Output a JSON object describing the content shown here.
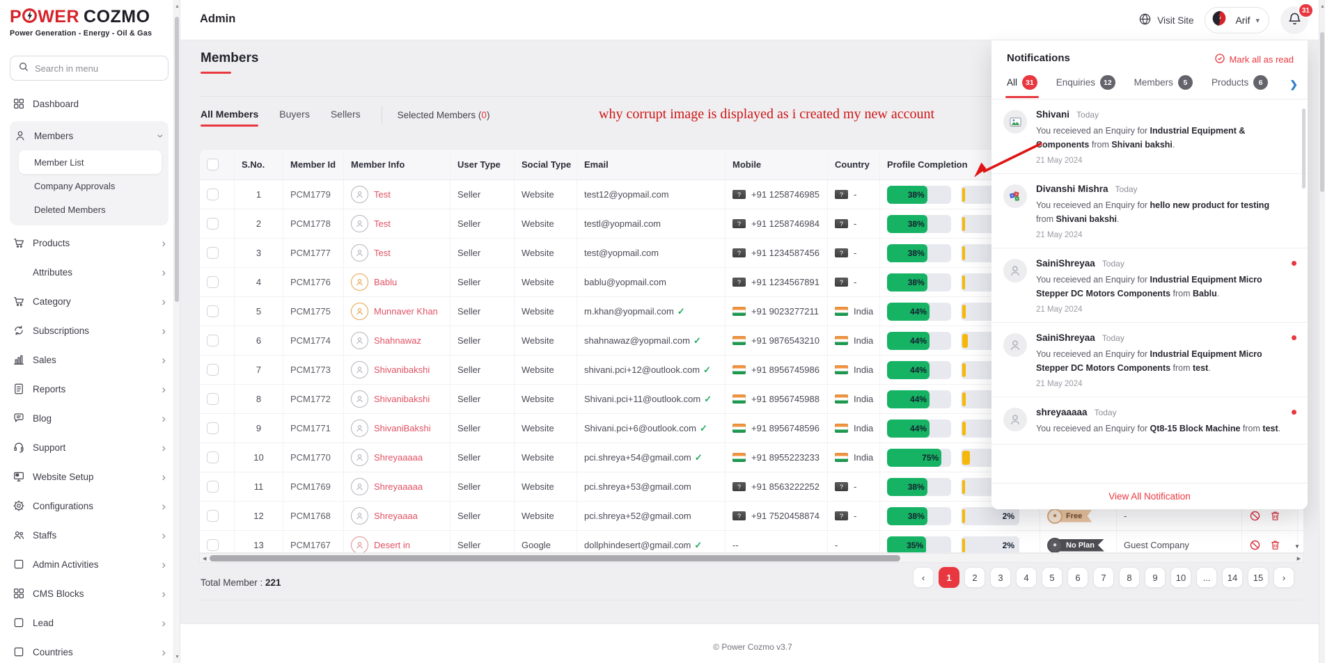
{
  "colors": {
    "accent": "#e8373f",
    "green": "#16b364",
    "yellow": "#f5b70a",
    "name_link": "#e05263",
    "brand_red": "#d6232a"
  },
  "brand": {
    "logo_part1": "P",
    "logo_part2": "WER",
    "logo_part3": "COZMO",
    "tagline": "Power Generation - Energy - Oil & Gas"
  },
  "header": {
    "title": "Admin",
    "visit_site": "Visit Site",
    "user_name": "Arif",
    "notification_count": "31"
  },
  "sidebar": {
    "search_placeholder": "Search in menu",
    "items": [
      {
        "label": "Dashboard",
        "icon": "dashboard-grid",
        "chevron": false
      },
      {
        "label": "Members",
        "icon": "person",
        "expanded": true,
        "children": [
          {
            "label": "Member List",
            "active": true
          },
          {
            "label": "Company Approvals",
            "active": false
          },
          {
            "label": "Deleted Members",
            "active": false
          }
        ]
      },
      {
        "label": "Products",
        "icon": "cart",
        "chevron": true
      },
      {
        "label": "Attributes",
        "icon": "",
        "chevron": true
      },
      {
        "label": "Category",
        "icon": "cart",
        "chevron": true
      },
      {
        "label": "Subscriptions",
        "icon": "refresh",
        "chevron": true
      },
      {
        "label": "Sales",
        "icon": "bar-chart",
        "chevron": true
      },
      {
        "label": "Reports",
        "icon": "document",
        "chevron": true
      },
      {
        "label": "Blog",
        "icon": "chat",
        "chevron": true
      },
      {
        "label": "Support",
        "icon": "headset",
        "chevron": true
      },
      {
        "label": "Website Setup",
        "icon": "monitor",
        "chevron": true
      },
      {
        "label": "Configurations",
        "icon": "gear",
        "chevron": true
      },
      {
        "label": "Staffs",
        "icon": "people",
        "chevron": true
      },
      {
        "label": "Admin Activities",
        "icon": "box",
        "chevron": true
      },
      {
        "label": "CMS Blocks",
        "icon": "dashboard-grid",
        "chevron": true
      },
      {
        "label": "Lead",
        "icon": "box",
        "chevron": true
      },
      {
        "label": "Countries",
        "icon": "box",
        "chevron": true
      }
    ]
  },
  "page": {
    "title": "Members",
    "tabs": [
      {
        "label": "All Members",
        "active": true
      },
      {
        "label": "Buyers",
        "active": false
      },
      {
        "label": "Sellers",
        "active": false
      }
    ],
    "selected_label": "Selected Members",
    "selected_count": "0"
  },
  "annotation": {
    "text": "why corrupt image is displayed as i created my new account"
  },
  "table": {
    "columns": [
      "",
      "S.No.",
      "Member Id",
      "Member Info",
      "User Type",
      "Social Type",
      "Email",
      "Mobile",
      "Country",
      "Profile Completion",
      "",
      "",
      ""
    ],
    "rows": [
      {
        "sno": "1",
        "member_id": "PCM1779",
        "name": "Test",
        "avatar_tint": "#b4b4bc",
        "user_type": "Seller",
        "social_type": "Website",
        "email": "test12@yopmail.com",
        "email_verified": false,
        "mobile_flag": "unknown",
        "mobile": "+91 1258746985",
        "country_flag": "unknown",
        "country": "-",
        "profile_green": 38,
        "profile_yellow": 2,
        "plan": "",
        "company": ""
      },
      {
        "sno": "2",
        "member_id": "PCM1778",
        "name": "Test",
        "avatar_tint": "#b4b4bc",
        "user_type": "Seller",
        "social_type": "Website",
        "email": "testl@yopmail.com",
        "email_verified": false,
        "mobile_flag": "unknown",
        "mobile": "+91 1258746984",
        "country_flag": "unknown",
        "country": "-",
        "profile_green": 38,
        "profile_yellow": 2,
        "plan": "",
        "company": ""
      },
      {
        "sno": "3",
        "member_id": "PCM1777",
        "name": "Test",
        "avatar_tint": "#b4b4bc",
        "user_type": "Seller",
        "social_type": "Website",
        "email": "test@yopmail.com",
        "email_verified": false,
        "mobile_flag": "unknown",
        "mobile": "+91 1234587456",
        "country_flag": "unknown",
        "country": "-",
        "profile_green": 38,
        "profile_yellow": 2,
        "plan": "",
        "company": ""
      },
      {
        "sno": "4",
        "member_id": "PCM1776",
        "name": "Bablu",
        "avatar_tint": "#e3a24b",
        "user_type": "Seller",
        "social_type": "Website",
        "email": "bablu@yopmail.com",
        "email_verified": false,
        "mobile_flag": "unknown",
        "mobile": "+91 1234567891",
        "country_flag": "unknown",
        "country": "-",
        "profile_green": 38,
        "profile_yellow": 2,
        "plan": "",
        "company": ""
      },
      {
        "sno": "5",
        "member_id": "PCM1775",
        "name": "Munnaver Khan",
        "avatar_tint": "#e3a24b",
        "user_type": "Seller",
        "social_type": "Website",
        "email": "m.khan@yopmail.com",
        "email_verified": true,
        "mobile_flag": "india",
        "mobile": "+91 9023277211",
        "country_flag": "india",
        "country": "India",
        "profile_green": 44,
        "profile_yellow": 3,
        "plan": "",
        "company": ""
      },
      {
        "sno": "6",
        "member_id": "PCM1774",
        "name": "Shahnawaz",
        "avatar_tint": "#b4b4bc",
        "user_type": "Seller",
        "social_type": "Website",
        "email": "shahnawaz@yopmail.com",
        "email_verified": true,
        "mobile_flag": "india",
        "mobile": "+91 9876543210",
        "country_flag": "india",
        "country": "India",
        "profile_green": 44,
        "profile_yellow": 9,
        "plan": "",
        "company": ""
      },
      {
        "sno": "7",
        "member_id": "PCM1773",
        "name": "Shivanibakshi",
        "avatar_tint": "#b4b4bc",
        "user_type": "Seller",
        "social_type": "Website",
        "email": "shivani.pci+12@outlook.com",
        "email_verified": true,
        "mobile_flag": "india",
        "mobile": "+91 8956745986",
        "country_flag": "india",
        "country": "India",
        "profile_green": 44,
        "profile_yellow": 3,
        "plan": "",
        "company": ""
      },
      {
        "sno": "8",
        "member_id": "PCM1772",
        "name": "Shivanibakshi",
        "avatar_tint": "#b4b4bc",
        "user_type": "Seller",
        "social_type": "Website",
        "email": "Shivani.pci+11@outlook.com",
        "email_verified": true,
        "mobile_flag": "india",
        "mobile": "+91 8956745988",
        "country_flag": "india",
        "country": "India",
        "profile_green": 44,
        "profile_yellow": 3,
        "plan": "",
        "company": ""
      },
      {
        "sno": "9",
        "member_id": "PCM1771",
        "name": "ShivaniBakshi",
        "avatar_tint": "#b4b4bc",
        "user_type": "Seller",
        "social_type": "Website",
        "email": "Shivani.pci+6@outlook.com",
        "email_verified": true,
        "mobile_flag": "india",
        "mobile": "+91 8956748596",
        "country_flag": "india",
        "country": "India",
        "profile_green": 44,
        "profile_yellow": 3,
        "plan": "",
        "company": ""
      },
      {
        "sno": "10",
        "member_id": "PCM1770",
        "name": "Shreyaaaaa",
        "avatar_tint": "#b4b4bc",
        "user_type": "Seller",
        "social_type": "Website",
        "email": "pci.shreya+54@gmail.com",
        "email_verified": true,
        "mobile_flag": "india",
        "mobile": "+91 8955223233",
        "country_flag": "india",
        "country": "India",
        "profile_green": 75,
        "profile_yellow": 13,
        "plan": "",
        "company": ""
      },
      {
        "sno": "11",
        "member_id": "PCM1769",
        "name": "Shreyaaaaa",
        "avatar_tint": "#b4b4bc",
        "user_type": "Seller",
        "social_type": "Website",
        "email": "pci.shreya+53@gmail.com",
        "email_verified": false,
        "mobile_flag": "unknown",
        "mobile": "+91 8563222252",
        "country_flag": "unknown",
        "country": "-",
        "profile_green": 38,
        "profile_yellow": 2,
        "plan": "",
        "company": ""
      },
      {
        "sno": "12",
        "member_id": "PCM1768",
        "name": "Shreyaaaa",
        "avatar_tint": "#b4b4bc",
        "user_type": "Seller",
        "social_type": "Website",
        "email": "pci.shreya+52@gmail.com",
        "email_verified": false,
        "mobile_flag": "unknown",
        "mobile": "+91 7520458874",
        "country_flag": "unknown",
        "country": "-",
        "profile_green": 38,
        "profile_yellow": 2,
        "plan": "Free",
        "company": "-"
      },
      {
        "sno": "13",
        "member_id": "PCM1767",
        "name": "Desert in",
        "avatar_tint": "#dd8f8f",
        "user_type": "Seller",
        "social_type": "Google",
        "email": "dollphindesert@gmail.com",
        "email_verified": true,
        "mobile_flag": "none",
        "mobile": "--",
        "country_flag": "none",
        "country": "-",
        "profile_green": 35,
        "profile_yellow": 2,
        "plan": "No Plan",
        "company": "Guest Company"
      }
    ]
  },
  "footer_bar": {
    "total_label": "Total Member : ",
    "total_value": "221"
  },
  "pagination": {
    "prev": "‹",
    "next": "›",
    "pages": [
      "1",
      "2",
      "3",
      "4",
      "5",
      "6",
      "7",
      "8",
      "9",
      "10",
      "...",
      "14",
      "15"
    ],
    "active": "1"
  },
  "notifications": {
    "title": "Notifications",
    "mark_all": "Mark all as read",
    "tabs": [
      {
        "label": "All",
        "count": "31",
        "active": true
      },
      {
        "label": "Enquiries",
        "count": "12",
        "active": false
      },
      {
        "label": "Members",
        "count": "5",
        "active": false
      },
      {
        "label": "Products",
        "count": "6",
        "active": false
      }
    ],
    "items": [
      {
        "name": "Shivani",
        "time": "Today",
        "avatar": "corrupt-image",
        "unread": false,
        "date": "21 May 2024",
        "segments": [
          {
            "text": "You receieved an Enquiry for ",
            "bold": false
          },
          {
            "text": "Industrial Equipment & Components",
            "bold": true
          },
          {
            "text": " from ",
            "bold": false
          },
          {
            "text": "Shivani bakshi",
            "bold": true
          },
          {
            "text": ".",
            "bold": false
          }
        ]
      },
      {
        "name": "Divanshi Mishra",
        "time": "Today",
        "avatar": "dice",
        "unread": false,
        "date": "21 May 2024",
        "segments": [
          {
            "text": "You receieved an Enquiry for ",
            "bold": false
          },
          {
            "text": "hello new product for testing",
            "bold": true
          },
          {
            "text": " from ",
            "bold": false
          },
          {
            "text": "Shivani bakshi",
            "bold": true
          },
          {
            "text": ".",
            "bold": false
          }
        ]
      },
      {
        "name": "SainiShreyaa",
        "time": "Today",
        "avatar": "placeholder",
        "unread": true,
        "date": "21 May 2024",
        "segments": [
          {
            "text": "You receieved an Enquiry for ",
            "bold": false
          },
          {
            "text": "Industrial Equipment Micro Stepper DC Motors Components",
            "bold": true
          },
          {
            "text": " from ",
            "bold": false
          },
          {
            "text": "Bablu",
            "bold": true
          },
          {
            "text": ".",
            "bold": false
          }
        ]
      },
      {
        "name": "SainiShreyaa",
        "time": "Today",
        "avatar": "placeholder",
        "unread": true,
        "date": "21 May 2024",
        "segments": [
          {
            "text": "You receieved an Enquiry for ",
            "bold": false
          },
          {
            "text": "Industrial Equipment Micro Stepper DC Motors Components",
            "bold": true
          },
          {
            "text": " from ",
            "bold": false
          },
          {
            "text": "test",
            "bold": true
          },
          {
            "text": ".",
            "bold": false
          }
        ]
      },
      {
        "name": "shreyaaaaa",
        "time": "Today",
        "avatar": "placeholder",
        "unread": true,
        "date": "",
        "segments": [
          {
            "text": "You receieved an Enquiry for ",
            "bold": false
          },
          {
            "text": "Qt8-15 Block Machine",
            "bold": true
          },
          {
            "text": " from ",
            "bold": false
          },
          {
            "text": "test",
            "bold": true
          },
          {
            "text": ".",
            "bold": false
          }
        ]
      }
    ],
    "view_all": "View All Notification"
  },
  "footer": {
    "copyright": "© Power Cozmo v3.7"
  }
}
